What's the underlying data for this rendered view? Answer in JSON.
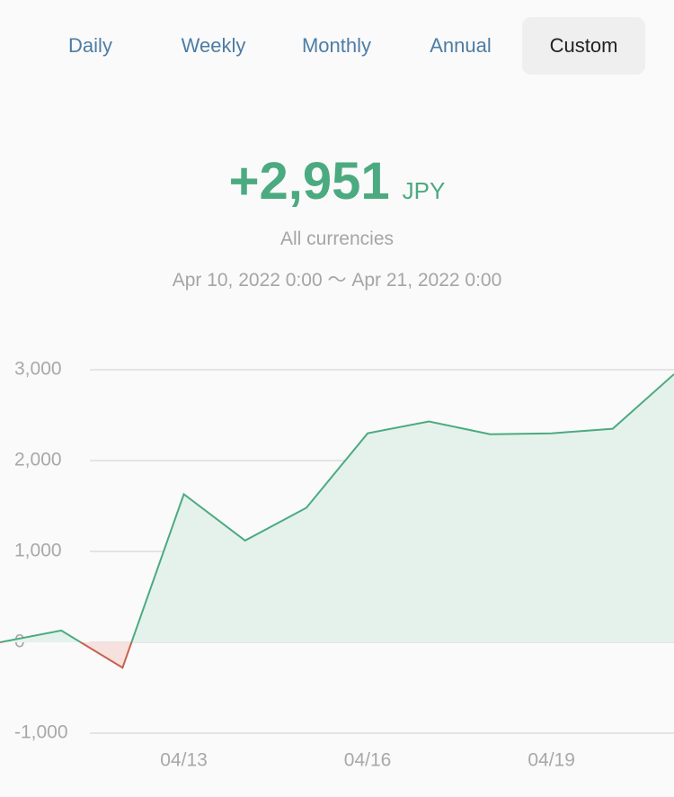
{
  "tabs": [
    "Daily",
    "Weekly",
    "Monthly",
    "Annual",
    "Custom"
  ],
  "selected_tab": 4,
  "summary": {
    "total": "+2,951",
    "currency": "JPY",
    "scope": "All currencies",
    "range": "Apr 10, 2022 0:00 〜 Apr 21, 2022 0:00"
  },
  "chart_data": {
    "type": "line",
    "categories": [
      null,
      null,
      null,
      "04/13",
      null,
      null,
      "04/16",
      null,
      null,
      "04/19",
      null,
      null
    ],
    "values": [
      0,
      130,
      -280,
      1630,
      1120,
      1480,
      2300,
      2430,
      2290,
      2300,
      2350,
      2951
    ],
    "color": "#4caa80",
    "negative_color": "#c7604f",
    "fill_color": "#e4f2eb",
    "negative_fill_color": "#f7e1de",
    "ylim": [
      -1000,
      3000
    ],
    "yticks": [
      {
        "value": -1000,
        "label": "-1,000"
      },
      0,
      {
        "value": 1000,
        "label": "1,000"
      },
      {
        "value": 2000,
        "label": "2,000"
      },
      {
        "value": 3000,
        "label": "3,000"
      }
    ],
    "grid": true
  }
}
